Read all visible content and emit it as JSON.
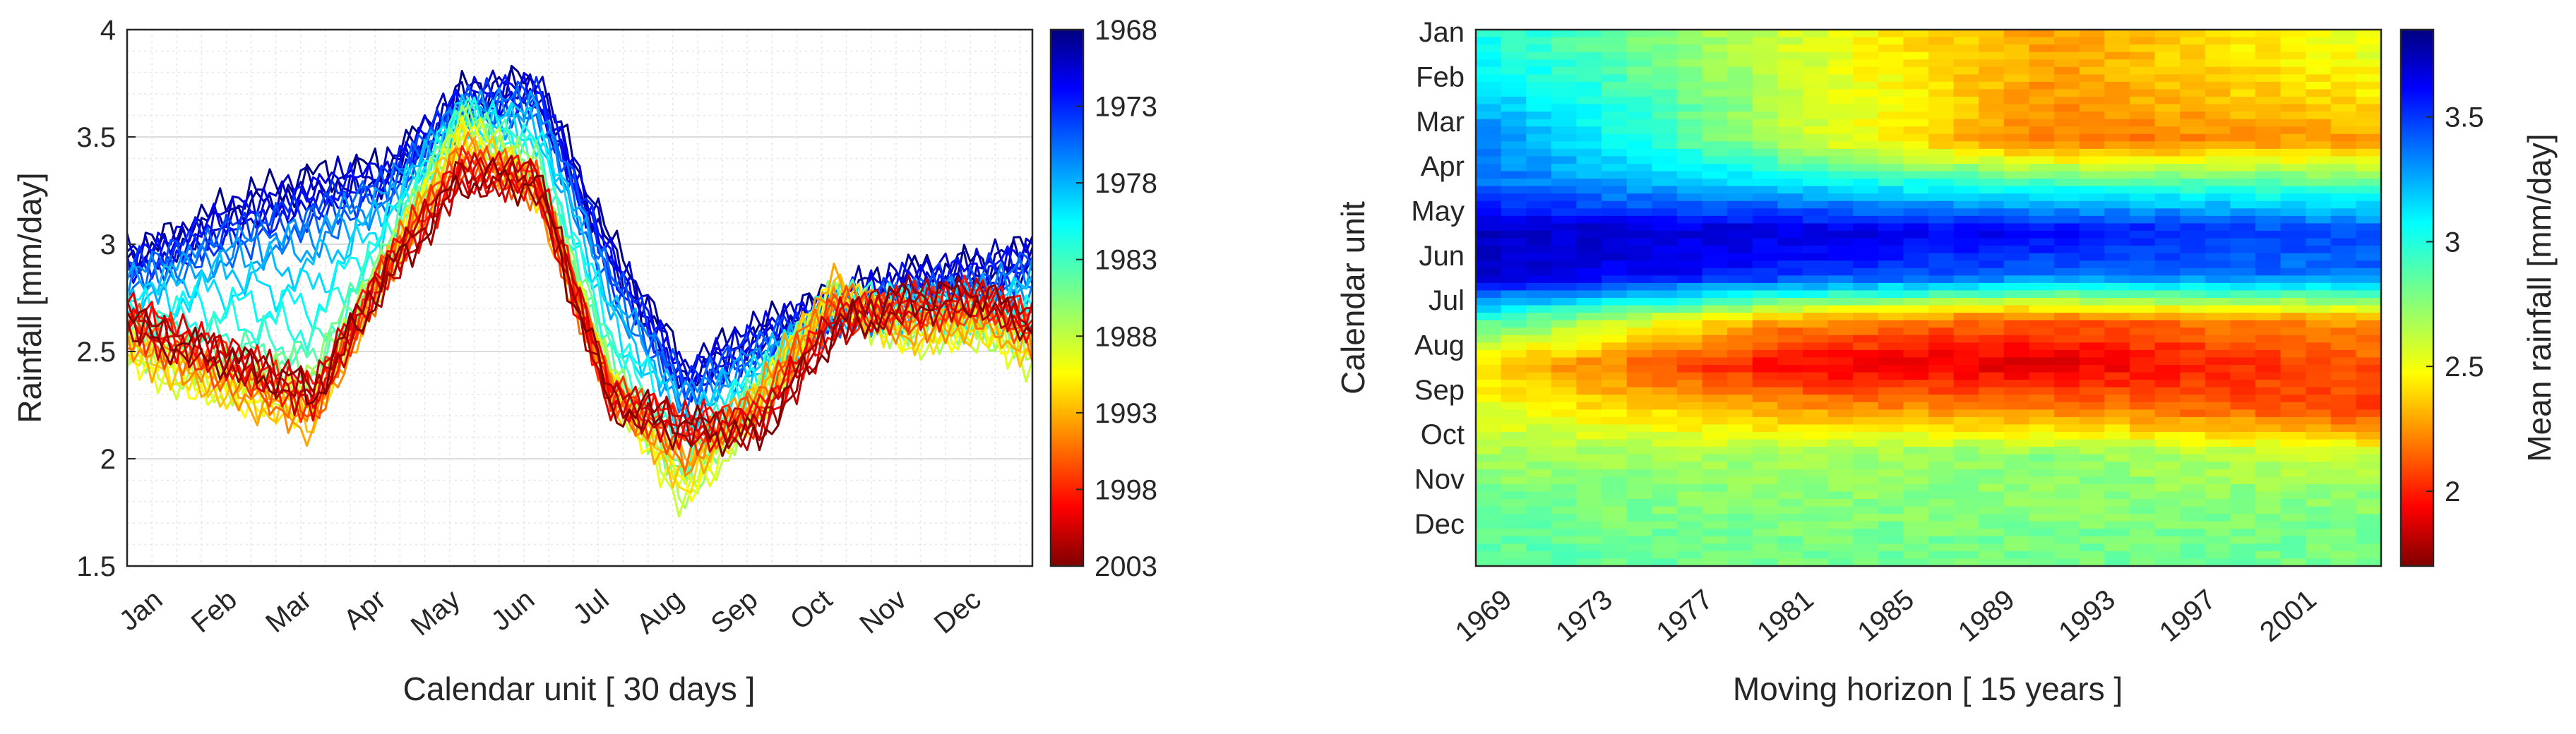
{
  "chart_data": [
    {
      "type": "line",
      "xlabel": "Calendar unit [ 30 days ]",
      "ylabel": "Rainfall  [mm/day]",
      "ylim": [
        1.5,
        4
      ],
      "yticks": [
        "1.5",
        "2",
        "2.5",
        "3",
        "3.5",
        "4"
      ],
      "categories": [
        "Jan",
        "Feb",
        "Mar",
        "Apr",
        "May",
        "Jun",
        "Jul",
        "Aug",
        "Sep",
        "Oct",
        "Nov",
        "Dec"
      ],
      "grid": true,
      "colorbar": {
        "labels": [
          "1968",
          "1973",
          "1978",
          "1983",
          "1988",
          "1993",
          "1998",
          "2003"
        ],
        "range": [
          1968,
          2003
        ],
        "colormap": "jet reversed (blue = 1968, red = 2003)"
      },
      "series_note": "one curve per 15-year window start year 1968-2003; representative mean seasonal profiles",
      "series": [
        {
          "year": 1968,
          "values": [
            3.0,
            3.2,
            3.3,
            3.35,
            3.7,
            3.75,
            3.0,
            2.4,
            2.6,
            2.75,
            2.85,
            2.9
          ]
        },
        {
          "year": 1973,
          "values": [
            2.95,
            3.1,
            3.2,
            3.3,
            3.65,
            3.7,
            2.9,
            2.35,
            2.55,
            2.7,
            2.8,
            2.85
          ]
        },
        {
          "year": 1978,
          "values": [
            2.85,
            2.95,
            3.0,
            3.2,
            3.6,
            3.6,
            2.75,
            2.25,
            2.45,
            2.65,
            2.7,
            2.75
          ]
        },
        {
          "year": 1983,
          "values": [
            2.6,
            2.55,
            2.5,
            3.0,
            3.6,
            3.4,
            2.5,
            2.0,
            2.35,
            2.75,
            2.7,
            2.65
          ]
        },
        {
          "year": 1988,
          "values": [
            2.4,
            2.3,
            2.3,
            2.9,
            3.55,
            3.3,
            2.35,
            1.8,
            2.25,
            2.75,
            2.55,
            2.6
          ]
        },
        {
          "year": 1993,
          "values": [
            2.45,
            2.3,
            2.15,
            2.9,
            3.45,
            3.25,
            2.3,
            1.95,
            2.3,
            2.8,
            2.6,
            2.65
          ]
        },
        {
          "year": 1998,
          "values": [
            2.6,
            2.45,
            2.3,
            2.9,
            3.35,
            3.3,
            2.3,
            2.15,
            2.2,
            2.65,
            2.7,
            2.75
          ]
        },
        {
          "year": 2003,
          "values": [
            2.55,
            2.45,
            2.3,
            2.85,
            3.3,
            3.3,
            2.25,
            2.15,
            2.1,
            2.6,
            2.75,
            2.75
          ]
        }
      ]
    },
    {
      "type": "heatmap",
      "xlabel": "Moving horizon [ 15 years ]",
      "ylabel": "Calendar unit",
      "xticks": [
        "1969",
        "1973",
        "1977",
        "1981",
        "1985",
        "1989",
        "1993",
        "1997",
        "2001"
      ],
      "xrange": [
        1968,
        2003
      ],
      "rows": [
        "Jan",
        "Feb",
        "Mar",
        "Apr",
        "May",
        "Jun",
        "Jul",
        "Aug",
        "Sep",
        "Oct",
        "Nov",
        "Dec"
      ],
      "colorbar": {
        "label": "Mean rainfall [mm/day]",
        "ticks": [
          "2",
          "2.5",
          "3",
          "3.5"
        ],
        "range": [
          1.7,
          3.85
        ],
        "colormap": "jet reversed (red = low, blue = high)"
      },
      "row_profiles": [
        {
          "row": "Jan",
          "1968": 3.0,
          "1980": 2.6,
          "1990": 2.3,
          "2003": 2.55
        },
        {
          "row": "Feb",
          "1968": 3.15,
          "1980": 2.65,
          "1990": 2.3,
          "2003": 2.45
        },
        {
          "row": "Mar",
          "1968": 3.3,
          "1980": 2.65,
          "1990": 2.2,
          "2003": 2.3
        },
        {
          "row": "Apr",
          "1968": 3.35,
          "1980": 3.1,
          "1990": 2.95,
          "2003": 2.9
        },
        {
          "row": "May",
          "1968": 3.7,
          "1980": 3.65,
          "1990": 3.6,
          "2003": 3.4
        },
        {
          "row": "Jun",
          "1968": 3.7,
          "1980": 3.5,
          "1990": 3.35,
          "2003": 3.35
        },
        {
          "row": "Jul",
          "1968": 2.9,
          "1980": 2.3,
          "1990": 2.15,
          "2003": 2.3
        },
        {
          "row": "Aug",
          "1968": 2.4,
          "1980": 1.95,
          "1990": 1.9,
          "2003": 2.15
        },
        {
          "row": "Sep",
          "1968": 2.55,
          "1980": 2.3,
          "1990": 2.25,
          "2003": 2.1
        },
        {
          "row": "Oct",
          "1968": 2.7,
          "1980": 2.7,
          "1990": 2.75,
          "2003": 2.6
        },
        {
          "row": "Nov",
          "1968": 2.8,
          "1980": 2.75,
          "1990": 2.75,
          "2003": 2.75
        },
        {
          "row": "Dec",
          "1968": 2.85,
          "1980": 2.8,
          "1990": 2.8,
          "2003": 2.8
        }
      ]
    }
  ]
}
